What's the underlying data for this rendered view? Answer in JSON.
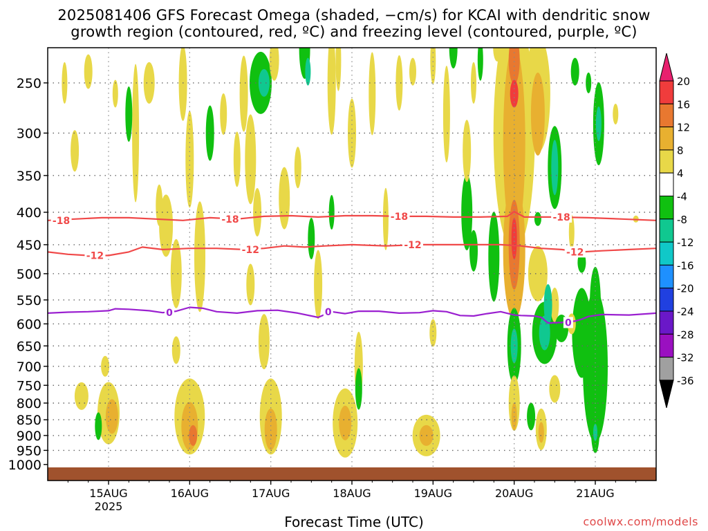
{
  "title_line1": "2025081406 GFS Forecast Omega (shaded, −cm/s) for KCAI with dendritic snow",
  "title_line2": "growth region (contoured, red, ºC) and freezing level (contoured, purple, ºC)",
  "credit": "coolwx.com/models",
  "colors": {
    "ground": "#a0522d",
    "dgz_contour": "#f04848",
    "freezing_contour": "#9a1fd0",
    "grid": "#666666"
  },
  "chart_data": {
    "type": "heatmap",
    "xlabel": "Forecast Time (UTC)",
    "ylabel": "",
    "y_scale": "pressure (hPa), reversed",
    "y_ticks": [
      250,
      300,
      350,
      400,
      450,
      500,
      550,
      600,
      650,
      700,
      750,
      800,
      850,
      900,
      950,
      1000
    ],
    "x_ticks": [
      {
        "label": "15AUG",
        "sublabel": "2025",
        "hours": 18
      },
      {
        "label": "16AUG",
        "sublabel": "",
        "hours": 42
      },
      {
        "label": "17AUG",
        "sublabel": "",
        "hours": 66
      },
      {
        "label": "18AUG",
        "sublabel": "",
        "hours": 90
      },
      {
        "label": "19AUG",
        "sublabel": "",
        "hours": 114
      },
      {
        "label": "20AUG",
        "sublabel": "",
        "hours": 138
      },
      {
        "label": "21AUG",
        "sublabel": "",
        "hours": 162
      }
    ],
    "x_range_hours": [
      0,
      180
    ],
    "colorbar": {
      "labels": [
        "20",
        "16",
        "12",
        "8",
        "4",
        "-4",
        "-8",
        "-12",
        "-16",
        "-20",
        "-24",
        "-28",
        "-32",
        "-36"
      ],
      "colors": [
        "#e8206e",
        "#f03c3c",
        "#e87830",
        "#e8b030",
        "#e8d848",
        "#ffffff",
        "#10c010",
        "#10c890",
        "#10c8c8",
        "#1e90ff",
        "#2040e0",
        "#6a18c8",
        "#9a10c0",
        "#a0a0a0",
        "#000000"
      ]
    },
    "contours": [
      {
        "label": "-18",
        "label_hours": [
          4,
          54,
          104,
          152
        ],
        "points": [
          [
            0,
            412
          ],
          [
            8,
            410
          ],
          [
            16,
            408
          ],
          [
            24,
            408
          ],
          [
            32,
            410
          ],
          [
            40,
            412
          ],
          [
            48,
            408
          ],
          [
            56,
            410
          ],
          [
            64,
            406
          ],
          [
            72,
            405
          ],
          [
            80,
            407
          ],
          [
            88,
            405
          ],
          [
            96,
            405
          ],
          [
            104,
            406
          ],
          [
            112,
            406
          ],
          [
            120,
            407
          ],
          [
            128,
            407
          ],
          [
            136,
            406
          ],
          [
            138,
            399
          ],
          [
            141,
            407
          ],
          [
            150,
            407
          ],
          [
            160,
            408
          ],
          [
            170,
            410
          ],
          [
            180,
            412
          ]
        ]
      },
      {
        "label": "-12",
        "label_hours": [
          14,
          60,
          108,
          156
        ],
        "points": [
          [
            0,
            462
          ],
          [
            6,
            466
          ],
          [
            12,
            468
          ],
          [
            18,
            468
          ],
          [
            24,
            462
          ],
          [
            28,
            454
          ],
          [
            34,
            458
          ],
          [
            42,
            456
          ],
          [
            50,
            456
          ],
          [
            58,
            458
          ],
          [
            64,
            456
          ],
          [
            70,
            452
          ],
          [
            76,
            454
          ],
          [
            82,
            452
          ],
          [
            90,
            450
          ],
          [
            100,
            452
          ],
          [
            110,
            450
          ],
          [
            118,
            450
          ],
          [
            126,
            450
          ],
          [
            134,
            450
          ],
          [
            140,
            452
          ],
          [
            146,
            456
          ],
          [
            152,
            458
          ],
          [
            158,
            462
          ],
          [
            164,
            460
          ],
          [
            172,
            458
          ],
          [
            180,
            456
          ]
        ]
      },
      {
        "label": "0",
        "label_hours": [
          36,
          83,
          154
        ],
        "points": [
          [
            0,
            577
          ],
          [
            6,
            575
          ],
          [
            12,
            574
          ],
          [
            18,
            572
          ],
          [
            20,
            568
          ],
          [
            24,
            569
          ],
          [
            30,
            572
          ],
          [
            34,
            576
          ],
          [
            38,
            573
          ],
          [
            42,
            565
          ],
          [
            46,
            567
          ],
          [
            50,
            574
          ],
          [
            56,
            577
          ],
          [
            62,
            572
          ],
          [
            68,
            571
          ],
          [
            74,
            577
          ],
          [
            80,
            586
          ],
          [
            84,
            574
          ],
          [
            88,
            578
          ],
          [
            92,
            573
          ],
          [
            98,
            573
          ],
          [
            104,
            577
          ],
          [
            110,
            576
          ],
          [
            114,
            572
          ],
          [
            118,
            574
          ],
          [
            122,
            582
          ],
          [
            126,
            583
          ],
          [
            130,
            578
          ],
          [
            134,
            574
          ],
          [
            138,
            581
          ],
          [
            140,
            582
          ],
          [
            144,
            583
          ],
          [
            146,
            586
          ],
          [
            148,
            598
          ],
          [
            152,
            597
          ],
          [
            156,
            594
          ],
          [
            158,
            590
          ],
          [
            160,
            584
          ],
          [
            164,
            580
          ],
          [
            172,
            581
          ],
          [
            178,
            578
          ],
          [
            180,
            577
          ]
        ]
      }
    ]
  }
}
